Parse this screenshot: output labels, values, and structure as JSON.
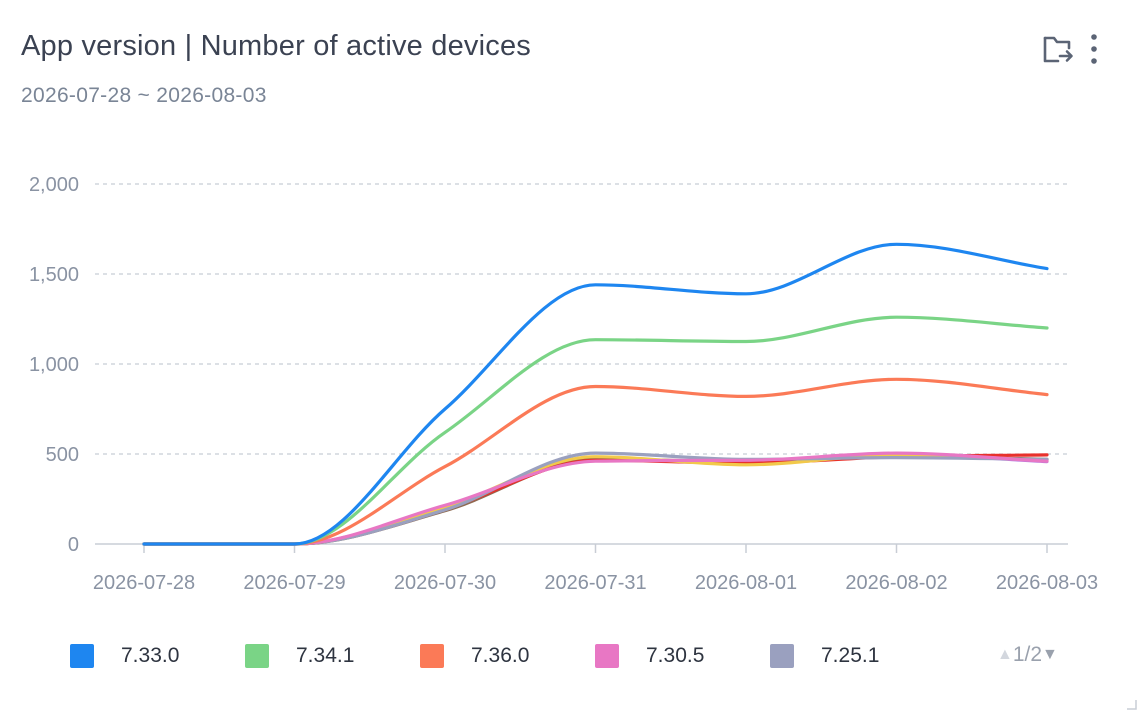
{
  "header": {
    "title": "App version | Number of active devices",
    "subtitle": "2026-07-28 ~ 2026-08-03"
  },
  "toolbar": {
    "save_icon": "folder-export-icon",
    "more_icon": "more-vertical-icon"
  },
  "chart_data": {
    "type": "line",
    "smooth": true,
    "title": "",
    "xlabel": "",
    "ylabel": "",
    "ylim": [
      0,
      2000
    ],
    "yticks": [
      0,
      500,
      1000,
      1500,
      2000
    ],
    "ytick_labels": [
      "0",
      "500",
      "1,000",
      "1,500",
      "2,000"
    ],
    "grid": "horizontal-dashed",
    "legend_position": "bottom",
    "x": [
      "2026-07-28",
      "2026-07-29",
      "2026-07-30",
      "2026-07-31",
      "2026-08-01",
      "2026-08-02",
      "2026-08-03"
    ],
    "series": [
      {
        "name": "7.33.0",
        "color": "#1e86f0",
        "values": [
          0,
          0,
          750,
          1440,
          1390,
          1665,
          1530
        ]
      },
      {
        "name": "7.34.1",
        "color": "#7ad486",
        "values": [
          0,
          0,
          620,
          1135,
          1125,
          1260,
          1200
        ]
      },
      {
        "name": "7.36.0",
        "color": "#fb7a57",
        "values": [
          0,
          0,
          430,
          875,
          820,
          915,
          830
        ]
      },
      {
        "name": "7.30.5",
        "color": "#e877c4",
        "values": [
          0,
          0,
          215,
          460,
          465,
          505,
          460
        ]
      },
      {
        "name": "7.25.1",
        "color": "#9aa0bf",
        "values": [
          0,
          0,
          190,
          505,
          470,
          480,
          470
        ]
      },
      {
        "color": "#f2c94a",
        "values": [
          0,
          0,
          205,
          485,
          440,
          495,
          465
        ]
      },
      {
        "color": "#e8312c",
        "values": [
          0,
          0,
          195,
          465,
          450,
          485,
          495
        ]
      },
      {
        "color": "#8e6a50",
        "values": [
          0,
          0,
          185,
          470,
          460,
          490,
          470
        ]
      },
      {
        "color": "#b57ae0",
        "values": [
          0,
          0,
          210,
          462,
          462,
          498,
          458
        ]
      }
    ]
  },
  "legend": {
    "page": "1/2",
    "up_arrow": "▲",
    "down_arrow": "▼"
  }
}
